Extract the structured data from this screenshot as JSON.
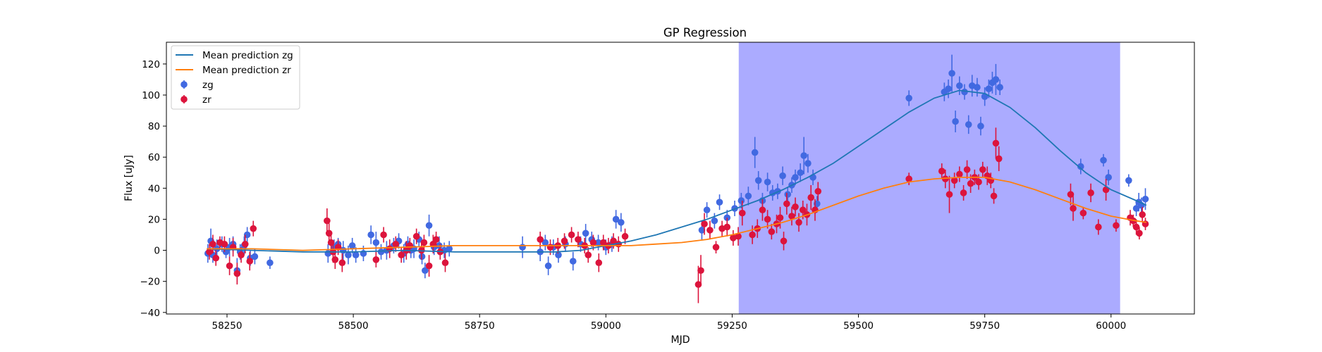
{
  "chart_data": {
    "type": "scatter",
    "title": "GP Regression",
    "xlabel": "MJD",
    "ylabel": "Flux [uJy]",
    "xlim": [
      58130,
      60165
    ],
    "ylim": [
      -41,
      134
    ],
    "xticks": [
      58250,
      58500,
      58750,
      59000,
      59250,
      59500,
      59750,
      60000
    ],
    "yticks": [
      -40,
      -20,
      0,
      20,
      40,
      60,
      80,
      100,
      120
    ],
    "grid": false,
    "legend_position": "top-left",
    "colors": {
      "zg": "#4169e1",
      "zr": "#dc143c",
      "zg_line": "#1f77b4",
      "zr_line": "#ff7f0e",
      "span": "#a6a6ff"
    },
    "highlight_span": [
      59263,
      60018
    ],
    "lines": [
      {
        "name": "Mean prediction zg",
        "color": "#1f77b4",
        "x": [
          58210,
          58300,
          58400,
          58500,
          58600,
          58700,
          58800,
          58900,
          58950,
          59000,
          59050,
          59100,
          59150,
          59200,
          59250,
          59300,
          59350,
          59400,
          59450,
          59500,
          59550,
          59600,
          59650,
          59700,
          59750,
          59800,
          59850,
          59900,
          59950,
          60000,
          60050,
          60070
        ],
        "y": [
          1,
          0,
          -1,
          -1,
          0,
          -1,
          -1,
          -1,
          0,
          3,
          6,
          10,
          15,
          20,
          26,
          32,
          39,
          47,
          56,
          67,
          78,
          89,
          98,
          103,
          101,
          92,
          79,
          64,
          50,
          39,
          32,
          29
        ]
      },
      {
        "name": "Mean prediction zr",
        "color": "#ff7f0e",
        "x": [
          58210,
          58300,
          58400,
          58500,
          58600,
          58700,
          58800,
          58900,
          58950,
          59000,
          59050,
          59100,
          59150,
          59200,
          59250,
          59300,
          59350,
          59400,
          59450,
          59500,
          59550,
          59600,
          59650,
          59700,
          59750,
          59800,
          59850,
          59900,
          59950,
          60000,
          60050,
          60070
        ],
        "y": [
          1,
          1,
          0,
          1,
          2,
          3,
          3,
          3,
          3,
          3,
          3,
          4,
          5,
          7,
          10,
          14,
          18,
          23,
          29,
          35,
          40,
          44,
          46,
          47,
          47,
          44,
          39,
          33,
          27,
          22,
          19,
          18
        ]
      }
    ],
    "series": [
      {
        "name": "zg",
        "color": "#4169e1",
        "points": [
          [
            58212,
            -2,
            6
          ],
          [
            58218,
            6,
            8
          ],
          [
            58222,
            -3,
            5
          ],
          [
            58230,
            1,
            6
          ],
          [
            58240,
            4,
            5
          ],
          [
            58248,
            -1,
            4
          ],
          [
            58255,
            2,
            6
          ],
          [
            58262,
            4,
            5
          ],
          [
            58270,
            -13,
            8
          ],
          [
            58276,
            -1,
            5
          ],
          [
            58284,
            3,
            6
          ],
          [
            58290,
            10,
            5
          ],
          [
            58296,
            -5,
            5
          ],
          [
            58305,
            -4,
            5
          ],
          [
            58335,
            -8,
            4
          ],
          [
            58450,
            -2,
            6
          ],
          [
            58462,
            2,
            5
          ],
          [
            58470,
            4,
            4
          ],
          [
            58480,
            0,
            6
          ],
          [
            58490,
            -3,
            6
          ],
          [
            58498,
            3,
            5
          ],
          [
            58505,
            -3,
            5
          ],
          [
            58520,
            -2,
            5
          ],
          [
            58535,
            10,
            6
          ],
          [
            58545,
            5,
            7
          ],
          [
            58555,
            -1,
            5
          ],
          [
            58566,
            0,
            6
          ],
          [
            58580,
            3,
            5
          ],
          [
            58590,
            6,
            5
          ],
          [
            58600,
            -2,
            6
          ],
          [
            58608,
            4,
            5
          ],
          [
            58614,
            0,
            5
          ],
          [
            58620,
            1,
            6
          ],
          [
            58630,
            7,
            5
          ],
          [
            58636,
            -4,
            5
          ],
          [
            58642,
            -13,
            5
          ],
          [
            58650,
            16,
            7
          ],
          [
            58660,
            2,
            5
          ],
          [
            58670,
            3,
            6
          ],
          [
            58680,
            0,
            5
          ],
          [
            58690,
            1,
            5
          ],
          [
            58835,
            2,
            7
          ],
          [
            58870,
            -1,
            6
          ],
          [
            58880,
            5,
            5
          ],
          [
            58886,
            -10,
            6
          ],
          [
            58896,
            2,
            5
          ],
          [
            58906,
            -3,
            5
          ],
          [
            58920,
            4,
            5
          ],
          [
            58935,
            -7,
            6
          ],
          [
            58950,
            4,
            5
          ],
          [
            58960,
            11,
            6
          ],
          [
            58972,
            7,
            5
          ],
          [
            58985,
            5,
            5
          ],
          [
            59000,
            2,
            5
          ],
          [
            59012,
            4,
            5
          ],
          [
            59020,
            20,
            6
          ],
          [
            59030,
            18,
            6
          ],
          [
            59190,
            13,
            6
          ],
          [
            59200,
            26,
            5
          ],
          [
            59215,
            19,
            5
          ],
          [
            59225,
            31,
            5
          ],
          [
            59240,
            21,
            5
          ],
          [
            59255,
            27,
            5
          ],
          [
            59268,
            32,
            5
          ],
          [
            59282,
            35,
            6
          ],
          [
            59295,
            63,
            10
          ],
          [
            59302,
            45,
            6
          ],
          [
            59310,
            32,
            5
          ],
          [
            59320,
            44,
            6
          ],
          [
            59330,
            37,
            5
          ],
          [
            59340,
            38,
            5
          ],
          [
            59350,
            48,
            6
          ],
          [
            59360,
            36,
            5
          ],
          [
            59368,
            42,
            5
          ],
          [
            59375,
            47,
            5
          ],
          [
            59385,
            50,
            6
          ],
          [
            59392,
            61,
            12
          ],
          [
            59400,
            56,
            6
          ],
          [
            59410,
            47,
            5
          ],
          [
            59418,
            30,
            5
          ],
          [
            59600,
            98,
            5
          ],
          [
            59670,
            102,
            6
          ],
          [
            59678,
            104,
            6
          ],
          [
            59685,
            114,
            12
          ],
          [
            59692,
            83,
            7
          ],
          [
            59700,
            106,
            6
          ],
          [
            59710,
            102,
            5
          ],
          [
            59718,
            81,
            6
          ],
          [
            59725,
            106,
            7
          ],
          [
            59735,
            105,
            6
          ],
          [
            59742,
            80,
            6
          ],
          [
            59750,
            99,
            6
          ],
          [
            59758,
            104,
            6
          ],
          [
            59765,
            108,
            7
          ],
          [
            59772,
            110,
            10
          ],
          [
            59780,
            105,
            5
          ],
          [
            59940,
            54,
            5
          ],
          [
            59985,
            58,
            4
          ],
          [
            59995,
            47,
            5
          ],
          [
            60035,
            45,
            4
          ],
          [
            60050,
            27,
            5
          ],
          [
            60055,
            31,
            6
          ],
          [
            60060,
            29,
            5
          ],
          [
            60068,
            33,
            7
          ]
        ]
      },
      {
        "name": "zr",
        "color": "#dc143c",
        "points": [
          [
            58215,
            -1,
            5
          ],
          [
            58222,
            4,
            6
          ],
          [
            58228,
            -5,
            5
          ],
          [
            58236,
            5,
            4
          ],
          [
            58245,
            4,
            5
          ],
          [
            58255,
            -10,
            6
          ],
          [
            58262,
            2,
            6
          ],
          [
            58270,
            -15,
            7
          ],
          [
            58278,
            -3,
            5
          ],
          [
            58286,
            4,
            6
          ],
          [
            58295,
            -7,
            6
          ],
          [
            58302,
            14,
            5
          ],
          [
            58448,
            19,
            8
          ],
          [
            58452,
            11,
            7
          ],
          [
            58456,
            5,
            7
          ],
          [
            58460,
            -1,
            7
          ],
          [
            58464,
            -6,
            6
          ],
          [
            58470,
            2,
            5
          ],
          [
            58478,
            -8,
            6
          ],
          [
            58545,
            -6,
            5
          ],
          [
            58560,
            10,
            5
          ],
          [
            58572,
            1,
            6
          ],
          [
            58584,
            4,
            5
          ],
          [
            58595,
            -3,
            5
          ],
          [
            58605,
            0,
            6
          ],
          [
            58612,
            3,
            5
          ],
          [
            58625,
            9,
            5
          ],
          [
            58635,
            0,
            6
          ],
          [
            58640,
            5,
            5
          ],
          [
            58650,
            -10,
            7
          ],
          [
            58658,
            4,
            6
          ],
          [
            58664,
            7,
            5
          ],
          [
            58672,
            -1,
            5
          ],
          [
            58682,
            -8,
            6
          ],
          [
            58870,
            7,
            5
          ],
          [
            58890,
            2,
            5
          ],
          [
            58905,
            3,
            5
          ],
          [
            58918,
            6,
            5
          ],
          [
            58932,
            10,
            5
          ],
          [
            58945,
            7,
            5
          ],
          [
            58958,
            3,
            5
          ],
          [
            58965,
            -3,
            5
          ],
          [
            58975,
            5,
            5
          ],
          [
            58986,
            -8,
            6
          ],
          [
            58995,
            5,
            5
          ],
          [
            59005,
            3,
            5
          ],
          [
            59015,
            6,
            5
          ],
          [
            59025,
            4,
            5
          ],
          [
            59038,
            9,
            5
          ],
          [
            59183,
            -22,
            12
          ],
          [
            59188,
            -13,
            10
          ],
          [
            59195,
            17,
            7
          ],
          [
            59206,
            13,
            6
          ],
          [
            59218,
            2,
            4
          ],
          [
            59230,
            14,
            5
          ],
          [
            59240,
            15,
            6
          ],
          [
            59252,
            8,
            5
          ],
          [
            59262,
            9,
            6
          ],
          [
            59270,
            24,
            8
          ],
          [
            59290,
            10,
            6
          ],
          [
            59300,
            14,
            6
          ],
          [
            59310,
            26,
            7
          ],
          [
            59320,
            20,
            6
          ],
          [
            59328,
            12,
            5
          ],
          [
            59338,
            17,
            6
          ],
          [
            59345,
            21,
            7
          ],
          [
            59352,
            6,
            6
          ],
          [
            59358,
            30,
            7
          ],
          [
            59368,
            22,
            6
          ],
          [
            59375,
            28,
            6
          ],
          [
            59382,
            18,
            6
          ],
          [
            59390,
            26,
            6
          ],
          [
            59398,
            23,
            7
          ],
          [
            59406,
            34,
            8
          ],
          [
            59414,
            26,
            7
          ],
          [
            59420,
            38,
            6
          ],
          [
            59600,
            46,
            4
          ],
          [
            59665,
            51,
            5
          ],
          [
            59672,
            46,
            6
          ],
          [
            59680,
            36,
            12
          ],
          [
            59690,
            45,
            5
          ],
          [
            59700,
            49,
            5
          ],
          [
            59708,
            37,
            5
          ],
          [
            59715,
            52,
            6
          ],
          [
            59722,
            43,
            6
          ],
          [
            59730,
            47,
            5
          ],
          [
            59738,
            44,
            5
          ],
          [
            59746,
            52,
            5
          ],
          [
            59755,
            48,
            6
          ],
          [
            59762,
            45,
            5
          ],
          [
            59768,
            35,
            5
          ],
          [
            59772,
            69,
            10
          ],
          [
            59778,
            59,
            8
          ],
          [
            59920,
            36,
            7
          ],
          [
            59925,
            27,
            8
          ],
          [
            59945,
            24,
            4
          ],
          [
            59960,
            37,
            6
          ],
          [
            59975,
            15,
            5
          ],
          [
            59990,
            39,
            7
          ],
          [
            60010,
            16,
            4
          ],
          [
            60038,
            21,
            5
          ],
          [
            60044,
            19,
            4
          ],
          [
            60050,
            15,
            5
          ],
          [
            60056,
            11,
            4
          ],
          [
            60062,
            23,
            5
          ],
          [
            60068,
            17,
            4
          ]
        ]
      }
    ]
  },
  "legend": [
    {
      "label": "Mean prediction zg",
      "kind": "line",
      "color": "#1f77b4"
    },
    {
      "label": "Mean prediction zr",
      "kind": "line",
      "color": "#ff7f0e"
    },
    {
      "label": "zg",
      "kind": "marker",
      "color": "#4169e1"
    },
    {
      "label": "zr",
      "kind": "marker",
      "color": "#dc143c"
    }
  ]
}
